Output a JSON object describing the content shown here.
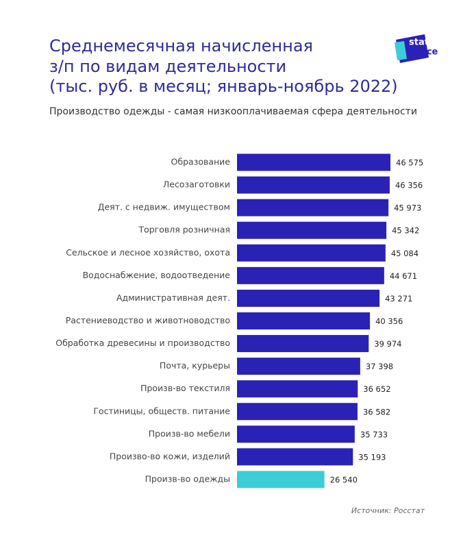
{
  "chart_data": {
    "type": "bar",
    "title": [
      "Среднемесячная начисленная",
      "з/п по видам деятельности",
      "(тыс. руб. в месяц; январь-ноябрь 2022)"
    ],
    "subtitle": "Производство одежды - самая низкооплачиваемая сфера деятельности",
    "source": "Источник: Росстат",
    "logo": [
      "stat",
      "space"
    ],
    "categories": [
      "Образование",
      "Лесозаготовки",
      "Деят. с недвиж. имуществом",
      "Торговля розничная",
      "Сельское и лесное хозяйство, охота",
      "Водоснабжение, водоотведение",
      "Административная деят.",
      "Растениеводство и животноводство",
      "Обработка древесины и производство",
      "Почта, курьеры",
      "Произв-во текстиля",
      "Гостиницы, обществ. питание",
      "Произв-во мебели",
      "Произво-во кожи, изделий",
      "Произв-во одежды"
    ],
    "values": [
      46575,
      46356,
      45973,
      45342,
      45084,
      44671,
      43271,
      40356,
      39974,
      37398,
      36652,
      36582,
      35733,
      35193,
      26540
    ],
    "value_labels": [
      "46 575",
      "46 356",
      "45 973",
      "45 342",
      "45 084",
      "44 671",
      "43 271",
      "40 356",
      "39 974",
      "37 398",
      "36 652",
      "36 582",
      "35 733",
      "35 193",
      "26 540"
    ],
    "colors": [
      "#2a22b4",
      "#2a22b4",
      "#2a22b4",
      "#2a22b4",
      "#2a22b4",
      "#2a22b4",
      "#2a22b4",
      "#2a22b4",
      "#2a22b4",
      "#2a22b4",
      "#2a22b4",
      "#2a22b4",
      "#2a22b4",
      "#2a22b4",
      "#3ccdd6"
    ]
  }
}
